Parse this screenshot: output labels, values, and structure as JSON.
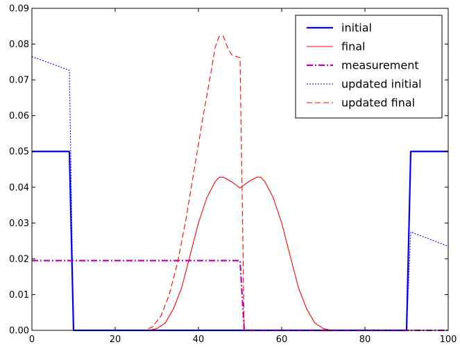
{
  "chart_data": {
    "type": "line",
    "title": "",
    "xlabel": "",
    "ylabel": "",
    "xlim": [
      0,
      100
    ],
    "ylim": [
      0,
      0.09
    ],
    "grid": false,
    "legend_position": "top-right",
    "x_ticks": [
      {
        "value": 0,
        "label": "0"
      },
      {
        "value": 20,
        "label": "20"
      },
      {
        "value": 40,
        "label": "40"
      },
      {
        "value": 60,
        "label": "60"
      },
      {
        "value": 80,
        "label": "80"
      },
      {
        "value": 100,
        "label": "100"
      }
    ],
    "y_ticks": [
      {
        "value": 0,
        "label": "0.00"
      },
      {
        "value": 0.01,
        "label": "0.01"
      },
      {
        "value": 0.02,
        "label": "0.02"
      },
      {
        "value": 0.03,
        "label": "0.03"
      },
      {
        "value": 0.04,
        "label": "0.04"
      },
      {
        "value": 0.05,
        "label": "0.05"
      },
      {
        "value": 0.06,
        "label": "0.06"
      },
      {
        "value": 0.07,
        "label": "0.07"
      },
      {
        "value": 0.08,
        "label": "0.08"
      },
      {
        "value": 0.09,
        "label": "0.09"
      }
    ],
    "series": [
      {
        "name": "initial",
        "color": "#0000ff",
        "style": "solid-thick",
        "points": [
          [
            0,
            0.05
          ],
          [
            9,
            0.05
          ],
          [
            10,
            0.0
          ],
          [
            90,
            0.0
          ],
          [
            91,
            0.05
          ],
          [
            100,
            0.05
          ]
        ]
      },
      {
        "name": "final",
        "color": "#ff0000",
        "style": "solid",
        "points": [
          [
            0,
            0
          ],
          [
            28,
            0
          ],
          [
            30,
            0.0005
          ],
          [
            32,
            0.002
          ],
          [
            34,
            0.006
          ],
          [
            36,
            0.012
          ],
          [
            38,
            0.021
          ],
          [
            40,
            0.03
          ],
          [
            42,
            0.037
          ],
          [
            44,
            0.0415
          ],
          [
            45,
            0.0428
          ],
          [
            46,
            0.0428
          ],
          [
            48,
            0.0415
          ],
          [
            50,
            0.0398
          ],
          [
            52,
            0.0415
          ],
          [
            54,
            0.0428
          ],
          [
            55,
            0.0428
          ],
          [
            56,
            0.0415
          ],
          [
            58,
            0.037
          ],
          [
            60,
            0.03
          ],
          [
            62,
            0.021
          ],
          [
            64,
            0.012
          ],
          [
            66,
            0.006
          ],
          [
            68,
            0.002
          ],
          [
            70,
            0.0005
          ],
          [
            72,
            0
          ],
          [
            100,
            0
          ]
        ]
      },
      {
        "name": "measurement",
        "color": "#bf00bf",
        "style": "dashdot-thick",
        "points": [
          [
            0,
            0.0195
          ],
          [
            50,
            0.0195
          ],
          [
            51,
            0.0
          ],
          [
            100,
            0.0
          ]
        ]
      },
      {
        "name": "updated initial",
        "color": "#0000ff",
        "style": "dotted",
        "points": [
          [
            0,
            0.0765
          ],
          [
            9,
            0.0727
          ],
          [
            10,
            0.0
          ],
          [
            90,
            0.0
          ],
          [
            91,
            0.0275
          ],
          [
            100,
            0.0235
          ]
        ]
      },
      {
        "name": "updated final",
        "color": "#ff0000",
        "style": "dashed",
        "points": [
          [
            0,
            0
          ],
          [
            27,
            0
          ],
          [
            29,
            0.001
          ],
          [
            31,
            0.004
          ],
          [
            33,
            0.01
          ],
          [
            35,
            0.019
          ],
          [
            37,
            0.031
          ],
          [
            39,
            0.045
          ],
          [
            41,
            0.059
          ],
          [
            43,
            0.072
          ],
          [
            44,
            0.079
          ],
          [
            45,
            0.0822
          ],
          [
            46,
            0.0822
          ],
          [
            47,
            0.079
          ],
          [
            48,
            0.077
          ],
          [
            50,
            0.0762
          ],
          [
            51,
            0.0
          ],
          [
            100,
            0
          ]
        ]
      }
    ]
  }
}
